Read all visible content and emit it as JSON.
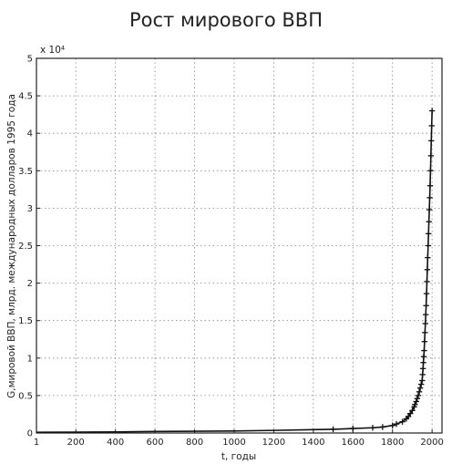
{
  "chart_data": {
    "type": "line",
    "title": "Рост мирового ВВП",
    "xlabel": "t, годы",
    "ylabel": "G,мировой ВВП, млрд. международных долларов 1995 года",
    "y_multiplier_label": "x 10⁴",
    "xlim": [
      1,
      2050
    ],
    "ylim": [
      0,
      50000
    ],
    "x_ticks": [
      1,
      200,
      400,
      600,
      800,
      1000,
      1200,
      1400,
      1600,
      1800,
      2000
    ],
    "y_ticks": [
      0,
      5000,
      10000,
      15000,
      20000,
      25000,
      30000,
      35000,
      40000,
      45000,
      50000
    ],
    "y_tick_labels": [
      "0",
      "0.5",
      "1",
      "1.5",
      "2",
      "2.5",
      "3",
      "3.5",
      "4",
      "4.5",
      "5"
    ],
    "grid": true,
    "series": [
      {
        "type": "line",
        "x": [
          1,
          200,
          400,
          600,
          800,
          1000,
          1200,
          1400,
          1500,
          1600,
          1700,
          1750,
          1800,
          1850,
          1870,
          1890,
          1900,
          1913,
          1920,
          1930,
          1940,
          1950,
          1955,
          1960,
          1965,
          1970,
          1975,
          1980,
          1985,
          1990,
          1995,
          2000
        ],
        "y": [
          100,
          110,
          150,
          200,
          230,
          270,
          350,
          450,
          500,
          600,
          700,
          800,
          1000,
          1500,
          1900,
          2600,
          3000,
          3800,
          4200,
          5000,
          6000,
          7000,
          9000,
          11000,
          14000,
          17000,
          21000,
          25000,
          29000,
          33000,
          38000,
          43000
        ]
      },
      {
        "type": "scatter",
        "x": [
          1500,
          1600,
          1700,
          1750,
          1800,
          1820,
          1850,
          1870,
          1880,
          1890,
          1900,
          1910,
          1913,
          1920,
          1925,
          1930,
          1935,
          1940,
          1945,
          1950,
          1952,
          1954,
          1956,
          1958,
          1960,
          1962,
          1964,
          1966,
          1968,
          1970,
          1972,
          1974,
          1976,
          1978,
          1980,
          1982,
          1984,
          1986,
          1988,
          1990,
          1992,
          1994,
          1996,
          1998,
          2000
        ],
        "y": [
          500,
          600,
          700,
          800,
          1000,
          1200,
          1500,
          1900,
          2200,
          2600,
          3000,
          3500,
          3800,
          4200,
          4600,
          5000,
          5500,
          6000,
          6500,
          7000,
          7800,
          8600,
          9400,
          10200,
          11000,
          12200,
          13400,
          14600,
          15800,
          17000,
          18600,
          20200,
          21800,
          23400,
          25000,
          26600,
          28200,
          29800,
          31400,
          33000,
          35000,
          37000,
          39000,
          41000,
          43000
        ]
      }
    ]
  }
}
